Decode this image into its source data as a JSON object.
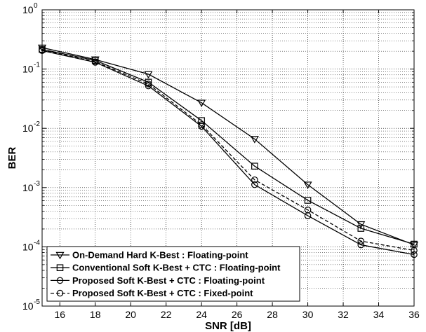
{
  "chart_data": {
    "type": "line",
    "xlabel": "SNR [dB]",
    "ylabel": "BER",
    "xlim": [
      15,
      36
    ],
    "ylim": [
      1e-05,
      1
    ],
    "yscale": "log",
    "grid": true,
    "legend_position": "bottom-left",
    "x_ticks": [
      "16",
      "18",
      "20",
      "22",
      "24",
      "26",
      "28",
      "30",
      "32",
      "34",
      "36"
    ],
    "y_ticks": [
      {
        "base": "10",
        "exp": "0",
        "value": 1
      },
      {
        "base": "10",
        "exp": "-1",
        "value": 0.1
      },
      {
        "base": "10",
        "exp": "-2",
        "value": 0.01
      },
      {
        "base": "10",
        "exp": "-3",
        "value": 0.001
      },
      {
        "base": "10",
        "exp": "-4",
        "value": 0.0001
      },
      {
        "base": "10",
        "exp": "-5",
        "value": 1e-05
      }
    ],
    "x": [
      15,
      18,
      21,
      24,
      27,
      30,
      33,
      36
    ],
    "series": [
      {
        "name": "On-Demand Hard K-Best : Floating-point",
        "marker": "triangle-down",
        "dash": "solid",
        "values": [
          0.23,
          0.145,
          0.082,
          0.027,
          0.0066,
          0.00112,
          0.00024,
          0.000108
        ]
      },
      {
        "name": "Conventional Soft K-Best + CTC : Floating-point",
        "marker": "square",
        "dash": "solid",
        "values": [
          0.215,
          0.14,
          0.06,
          0.0135,
          0.0023,
          0.00061,
          0.000205,
          0.000111
        ]
      },
      {
        "name": "Proposed Soft K-Best + CTC : Floating-point",
        "marker": "circle",
        "dash": "solid",
        "values": [
          0.205,
          0.13,
          0.052,
          0.0108,
          0.00112,
          0.000335,
          0.000108,
          7.4e-05
        ]
      },
      {
        "name": "Proposed Soft K-Best + CTC : Fixed-point",
        "marker": "circle",
        "dash": "dashed",
        "values": [
          0.21,
          0.133,
          0.056,
          0.0115,
          0.00135,
          0.00042,
          0.000125,
          8.7e-05
        ]
      }
    ]
  }
}
